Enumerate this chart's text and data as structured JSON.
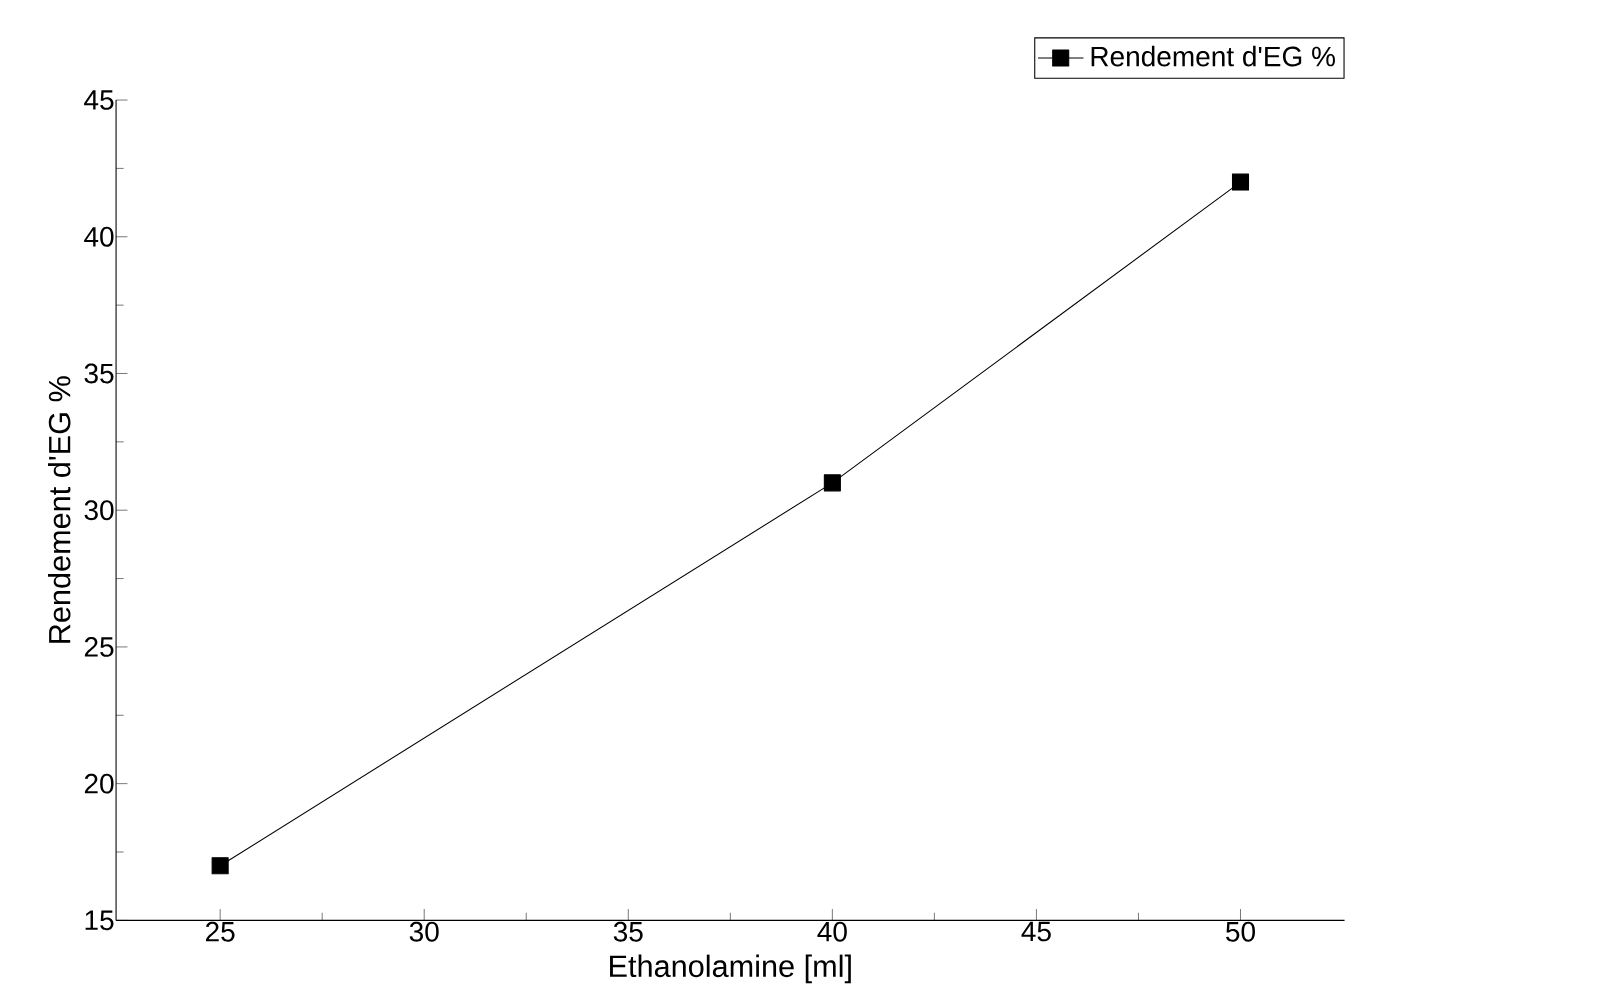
{
  "chart_data": {
    "type": "line",
    "xlabel": "Ethanolamine [ml]",
    "ylabel": "Rendement d'EG %",
    "x": [
      25,
      40,
      50
    ],
    "series": [
      {
        "name": "Rendement d'EG %",
        "color": "#000000",
        "values": [
          17,
          31,
          42
        ]
      }
    ],
    "xlim": [
      22.45,
      52.55
    ],
    "xticks": [
      25,
      30,
      35,
      40,
      45,
      50
    ],
    "ylim": [
      15,
      45
    ],
    "yticks": [
      15,
      20,
      25,
      30,
      35,
      40,
      45
    ],
    "marker": "square",
    "line_style": "solid",
    "legend": "top right",
    "grid": false
  }
}
